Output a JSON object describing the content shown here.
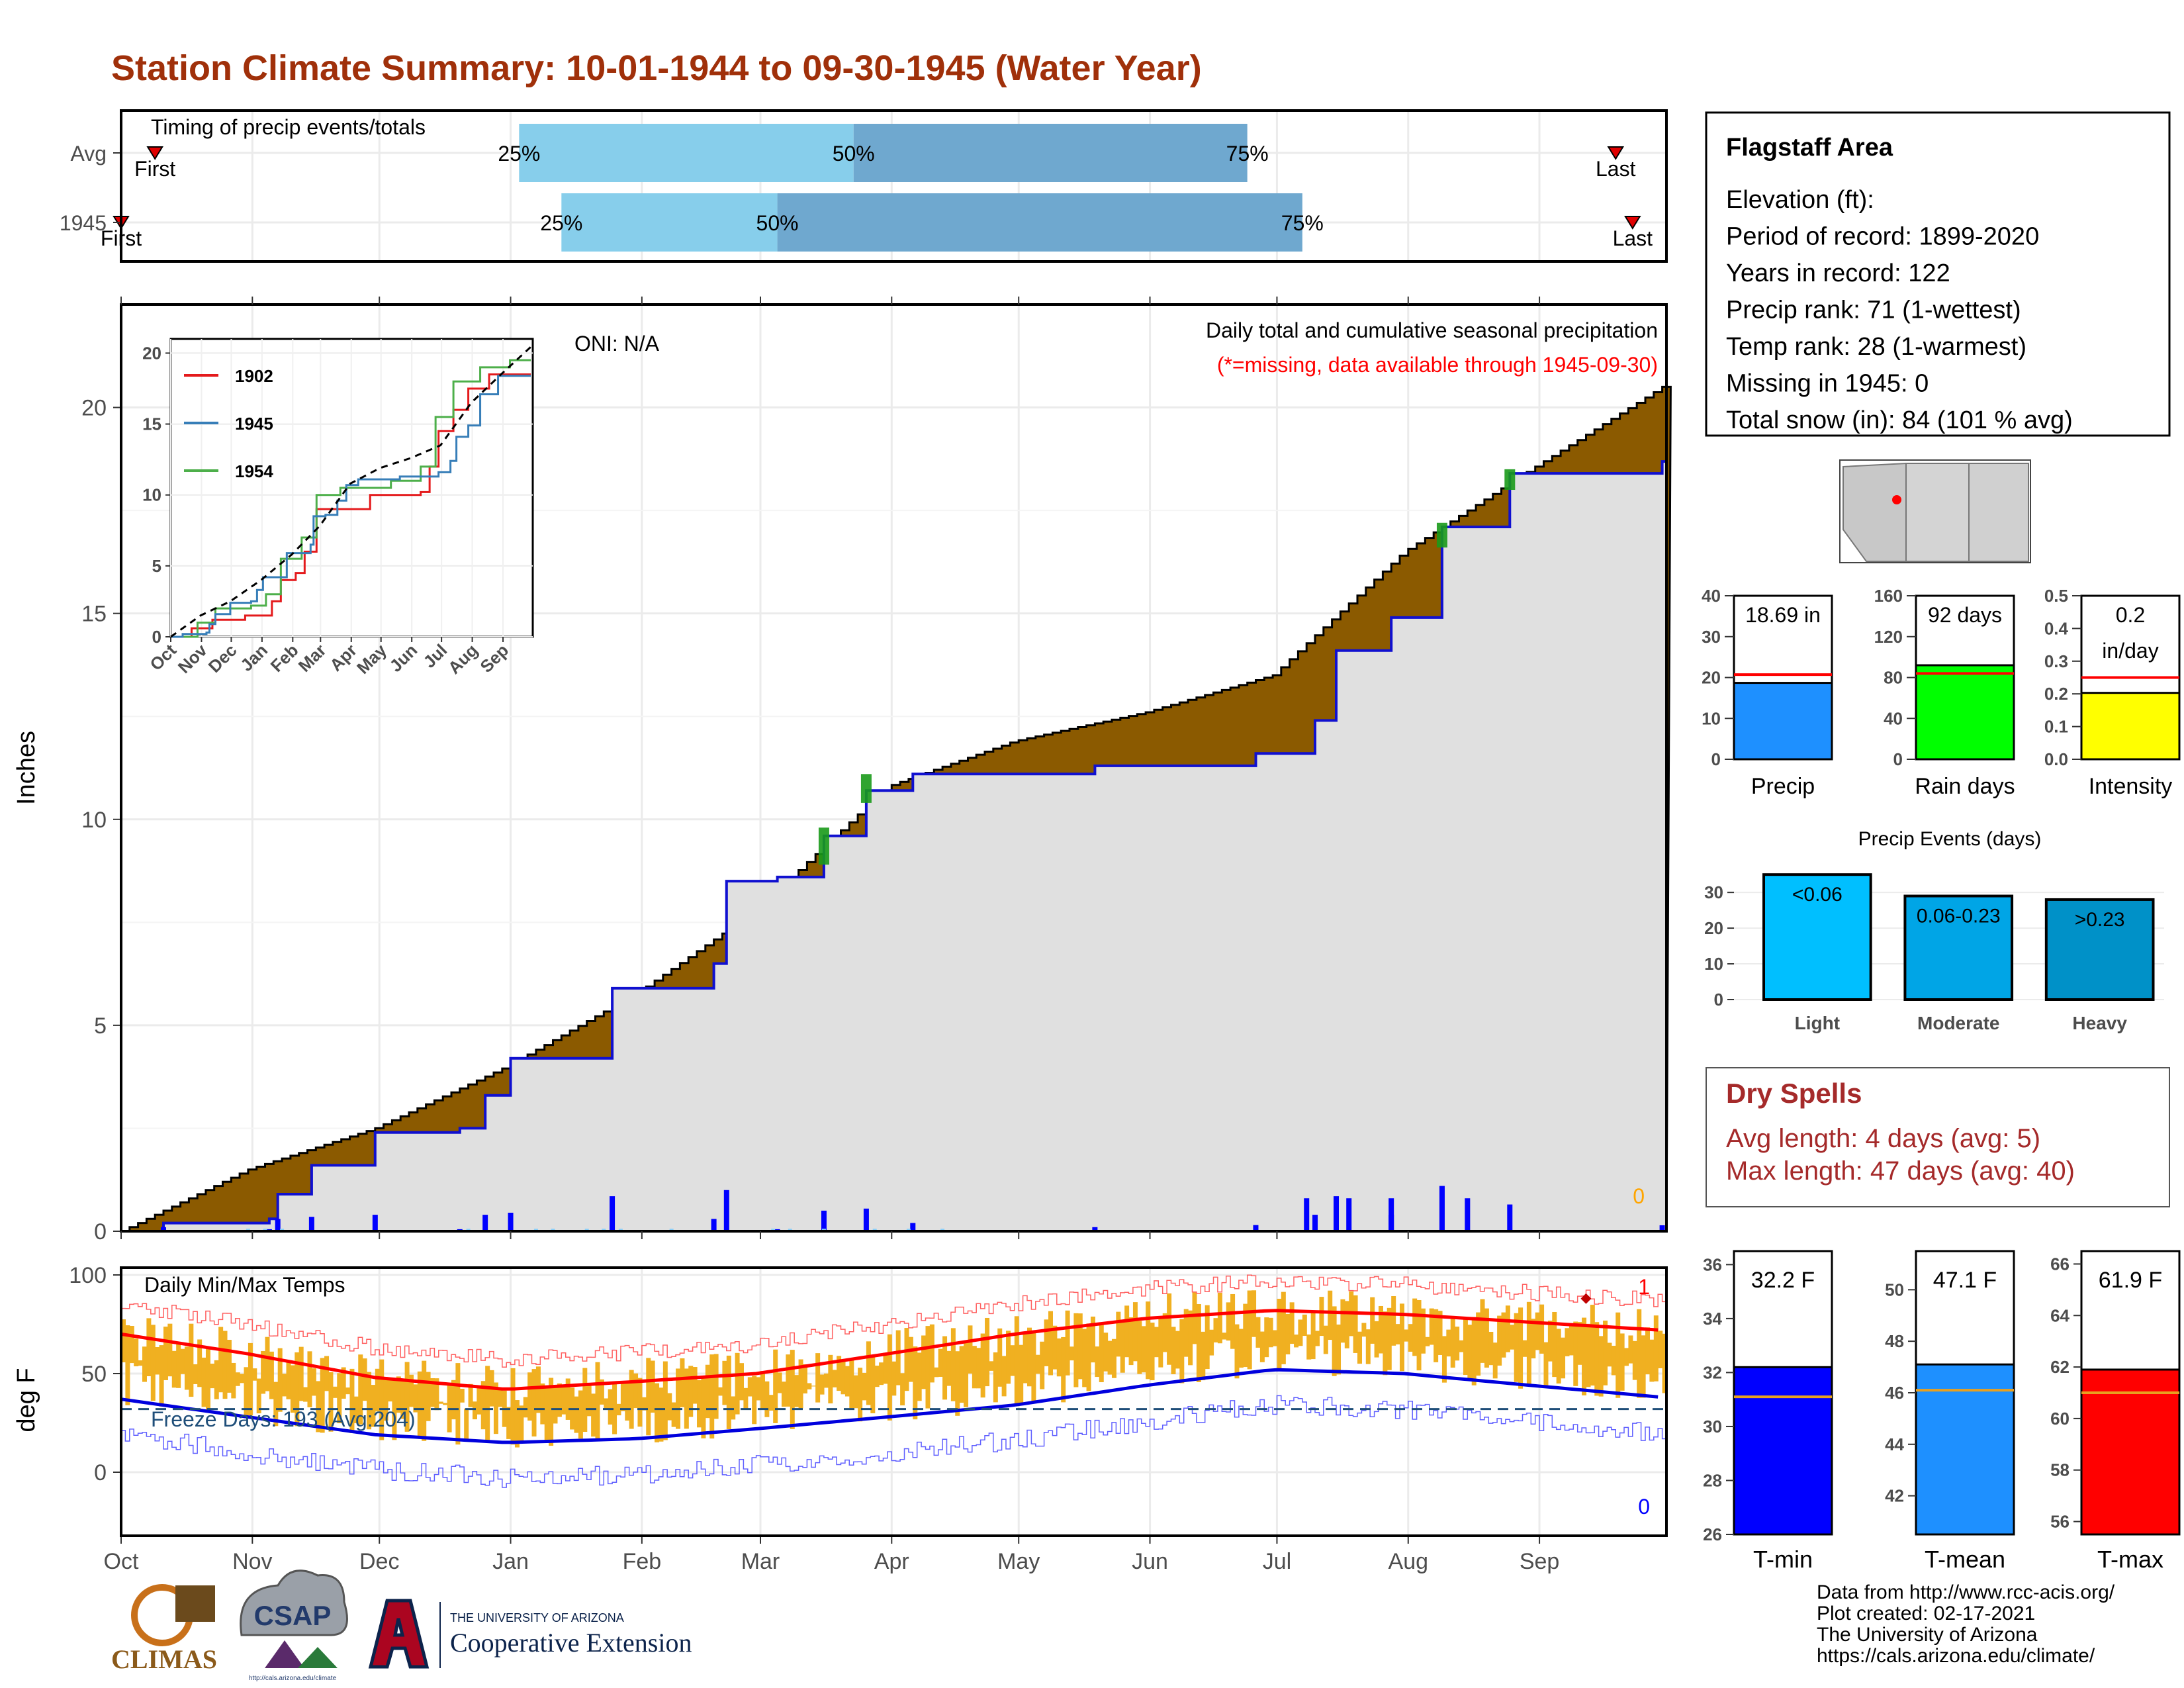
{
  "title": "Station Climate Summary: 10-01-1944 to 09-30-1945 (Water Year)",
  "timing": {
    "label": "Timing of precip events/totals",
    "rows": [
      {
        "name": "Avg",
        "first": "First",
        "last": "Last",
        "p25": "25%",
        "p50": "50%",
        "p75": "75%",
        "p25_day": 94,
        "p50_day": 173,
        "p75_day": 266,
        "first_day": 8,
        "last_day": 353
      },
      {
        "name": "1945",
        "first": "First",
        "last": "Last",
        "p25": "25%",
        "p50": "50%",
        "p75": "75%",
        "p25_day": 104,
        "p50_day": 155,
        "p75_day": 279,
        "first_day": 0,
        "last_day": 357
      }
    ]
  },
  "precip_main": {
    "ylabel": "Inches",
    "subtitle": "Daily total and cumulative seasonal precipitation",
    "missing_note": "(*=missing, data available through 1945-09-30)",
    "oni": "ONI: N/A",
    "missing_count": "0",
    "yticks": [
      "0",
      "5",
      "10",
      "15",
      "20"
    ],
    "ylim": [
      0,
      22.5
    ]
  },
  "inset": {
    "legend": [
      "1902",
      "1945",
      "1954"
    ],
    "xticks": [
      "Oct",
      "Nov",
      "Dec",
      "Jan",
      "Feb",
      "Mar",
      "Apr",
      "May",
      "Jun",
      "Jul",
      "Aug",
      "Sep"
    ],
    "yticks": [
      "0",
      "5",
      "10",
      "15",
      "20"
    ]
  },
  "temps": {
    "label": "Daily Min/Max Temps",
    "ylabel": "deg F",
    "freeze": "Freeze Days: 193 (Avg:204)",
    "record_high_count": "1",
    "record_low_count": "0",
    "yticks": [
      "0",
      "50",
      "100"
    ]
  },
  "months": [
    "Oct",
    "Nov",
    "Dec",
    "Jan",
    "Feb",
    "Mar",
    "Apr",
    "May",
    "Jun",
    "Jul",
    "Aug",
    "Sep"
  ],
  "station": {
    "name": "Flagstaff Area",
    "lines": [
      "Elevation (ft):",
      "Period of record: 1899-2020",
      "Years in record: 122",
      "Precip rank: 71 (1-wettest)",
      "Temp rank: 28 (1-warmest)",
      "Missing in 1945: 0",
      "Total snow (in): 84 (101 % avg)"
    ]
  },
  "small_bars": [
    {
      "name": "Precip",
      "value_label": "18.69 in",
      "value": 18.69,
      "avg": 20.7,
      "ymax": 40,
      "ticks": [
        "0",
        "10",
        "20",
        "30",
        "40"
      ],
      "color": "#1e90ff"
    },
    {
      "name": "Rain days",
      "value_label": "92 days",
      "value": 92,
      "avg": 84,
      "ymax": 160,
      "ticks": [
        "0",
        "40",
        "80",
        "120",
        "160"
      ],
      "color": "#00ff00"
    },
    {
      "name": "Intensity",
      "value_label": "0.2",
      "value_label2": "in/day",
      "value": 0.203,
      "avg": 0.25,
      "ymax": 0.5,
      "ticks": [
        "0.0",
        "0.1",
        "0.2",
        "0.3",
        "0.4",
        "0.5"
      ],
      "color": "#ffff00"
    }
  ],
  "events": {
    "title": "Precip Events (days)",
    "bars": [
      {
        "category": "Light",
        "label": "<0.06",
        "value": 35,
        "color": "#00bfff"
      },
      {
        "category": "Moderate",
        "label": "0.06-0.23",
        "value": 29,
        "color": "#00a5e6"
      },
      {
        "category": "Heavy",
        "label": ">0.23",
        "value": 28,
        "color": "#0091c8"
      }
    ],
    "ticks": [
      "0",
      "10",
      "20",
      "30"
    ]
  },
  "dry": {
    "title": "Dry Spells",
    "avg": "Avg length: 4 days (avg: 5)",
    "max": "Max length: 47 days (avg: 40)"
  },
  "temp_bars": [
    {
      "name": "T-min",
      "value_label": "32.2 F",
      "value": 32.2,
      "avg": 31.1,
      "ymin": 26,
      "ymax": 36.5,
      "ticks": [
        "26",
        "28",
        "30",
        "32",
        "34",
        "36"
      ],
      "color": "#0000ff"
    },
    {
      "name": "T-mean",
      "value_label": "47.1 F",
      "value": 47.1,
      "avg": 46.1,
      "ymin": 40.5,
      "ymax": 51.5,
      "ticks": [
        "42",
        "44",
        "46",
        "48",
        "50"
      ],
      "color": "#1e90ff"
    },
    {
      "name": "T-max",
      "value_label": "61.9 F",
      "value": 61.9,
      "avg": 61.0,
      "ymin": 55.5,
      "ymax": 66.5,
      "ticks": [
        "56",
        "58",
        "60",
        "62",
        "64",
        "66"
      ],
      "color": "#ff0000"
    }
  ],
  "footer": [
    "Data from http://www.rcc-acis.org/",
    "Plot created: 02-17-2021",
    "The University of Arizona",
    "https://cals.arizona.edu/climate/"
  ],
  "logos": {
    "climas": "CLIMAS",
    "csap": "CSAP",
    "ua_small": "THE UNIVERSITY OF ARIZONA",
    "coop": "Cooperative Extension",
    "csap_url": "http://cals.arizona.edu/climate"
  },
  "chart_data": {
    "type": "area",
    "title": "Station Climate Summary: 10-01-1944 to 09-30-1945 (Water Year)",
    "ylabel": "Inches",
    "ylim": [
      0,
      22.5
    ],
    "cumulative_avg": [
      [
        0,
        0
      ],
      [
        30,
        1.5
      ],
      [
        60,
        2.5
      ],
      [
        91,
        4.0
      ],
      [
        122,
        5.8
      ],
      [
        150,
        7.8
      ],
      [
        181,
        10.8
      ],
      [
        211,
        11.9
      ],
      [
        242,
        12.6
      ],
      [
        272,
        13.5
      ],
      [
        303,
        16.5
      ],
      [
        333,
        18.5
      ],
      [
        364,
        20.5
      ]
    ],
    "cumulative_1945": [
      [
        0,
        0
      ],
      [
        10,
        0.2
      ],
      [
        35,
        0.3
      ],
      [
        37,
        0.9
      ],
      [
        45,
        1.6
      ],
      [
        60,
        2.4
      ],
      [
        80,
        2.5
      ],
      [
        86,
        3.3
      ],
      [
        92,
        4.2
      ],
      [
        110,
        4.2
      ],
      [
        116,
        5.9
      ],
      [
        140,
        6.5
      ],
      [
        143,
        8.5
      ],
      [
        155,
        8.6
      ],
      [
        166,
        9.6
      ],
      [
        176,
        10.7
      ],
      [
        187,
        11.1
      ],
      [
        230,
        11.3
      ],
      [
        268,
        11.6
      ],
      [
        282,
        12.4
      ],
      [
        287,
        14.1
      ],
      [
        300,
        14.9
      ],
      [
        312,
        17.1
      ],
      [
        328,
        18.4
      ],
      [
        364,
        18.69
      ]
    ],
    "temps_normal_max": [
      [
        0,
        70
      ],
      [
        30,
        60
      ],
      [
        60,
        48
      ],
      [
        91,
        42
      ],
      [
        122,
        46
      ],
      [
        150,
        50
      ],
      [
        181,
        60
      ],
      [
        211,
        70
      ],
      [
        242,
        78
      ],
      [
        272,
        82
      ],
      [
        303,
        80
      ],
      [
        333,
        76
      ],
      [
        364,
        72
      ]
    ],
    "temps_normal_min": [
      [
        0,
        37
      ],
      [
        30,
        28
      ],
      [
        60,
        19
      ],
      [
        91,
        15
      ],
      [
        122,
        17
      ],
      [
        150,
        22
      ],
      [
        181,
        28
      ],
      [
        211,
        34
      ],
      [
        242,
        44
      ],
      [
        272,
        52
      ],
      [
        303,
        50
      ],
      [
        333,
        44
      ],
      [
        364,
        38
      ]
    ],
    "freeze_line": 32,
    "series": [
      {
        "name": "1902"
      },
      {
        "name": "1945"
      },
      {
        "name": "1954"
      }
    ]
  }
}
